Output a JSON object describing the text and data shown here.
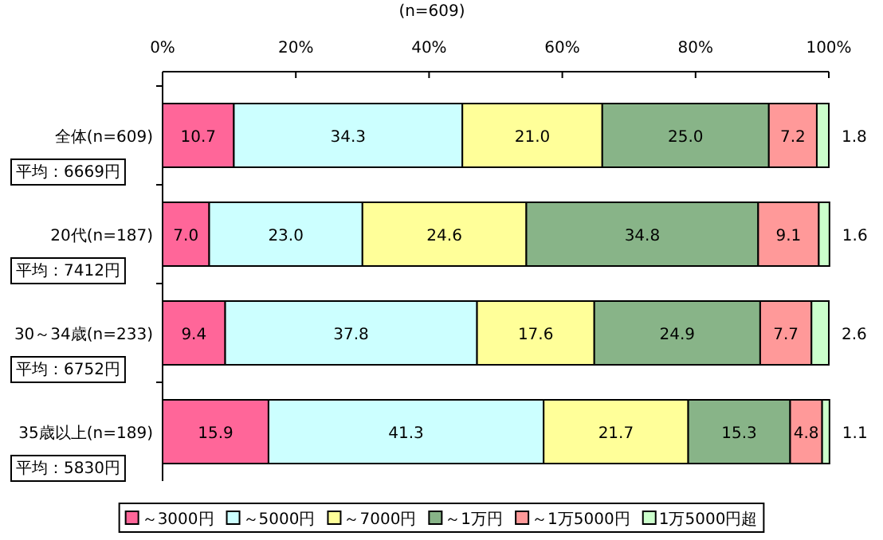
{
  "chart_data": {
    "type": "bar",
    "orientation": "horizontal",
    "stacked": true,
    "title": "(n=609)",
    "categories": [
      "全体(n=609)",
      "20代(n=187)",
      "30～34歳(n=233)",
      "35歳以上(n=189)"
    ],
    "series": [
      {
        "name": "～3000円",
        "color": "#ff6699",
        "values": [
          10.7,
          7.0,
          9.4,
          15.9
        ],
        "value_labels": [
          "10.7",
          "7.0",
          "9.4",
          "15.9"
        ]
      },
      {
        "name": "～5000円",
        "color": "#ccffff",
        "values": [
          34.3,
          23.0,
          37.8,
          41.3
        ],
        "value_labels": [
          "34.3",
          "23.0",
          "37.8",
          "41.3"
        ]
      },
      {
        "name": "～7000円",
        "color": "#ffff99",
        "values": [
          21.0,
          24.6,
          17.6,
          21.7
        ],
        "value_labels": [
          "21.0",
          "24.6",
          "17.6",
          "21.7"
        ]
      },
      {
        "name": "～1万円",
        "color": "#88b488",
        "values": [
          25.0,
          34.8,
          24.9,
          15.3
        ],
        "value_labels": [
          "25.0",
          "34.8",
          "24.9",
          "15.3"
        ]
      },
      {
        "name": "～1万5000円",
        "color": "#ff9999",
        "values": [
          7.2,
          9.1,
          7.7,
          4.8
        ],
        "value_labels": [
          "7.2",
          "9.1",
          "7.7",
          "4.8"
        ]
      },
      {
        "name": "1万5000円超",
        "color": "#ccffcc",
        "values": [
          1.8,
          1.6,
          2.6,
          1.1
        ],
        "value_labels": [
          "1.8",
          "1.6",
          "2.6",
          "1.1"
        ]
      }
    ],
    "xlim": [
      0,
      100
    ],
    "xticks": [
      {
        "value": 0,
        "label": "0%"
      },
      {
        "value": 20,
        "label": "20%"
      },
      {
        "value": 40,
        "label": "40%"
      },
      {
        "value": 60,
        "label": "60%"
      },
      {
        "value": 80,
        "label": "80%"
      },
      {
        "value": 100,
        "label": "100%"
      }
    ],
    "legend": "bottom",
    "grid": false,
    "annotations": [
      "平均：6669円",
      "平均：7412円",
      "平均：6752円",
      "平均：5830円"
    ]
  }
}
